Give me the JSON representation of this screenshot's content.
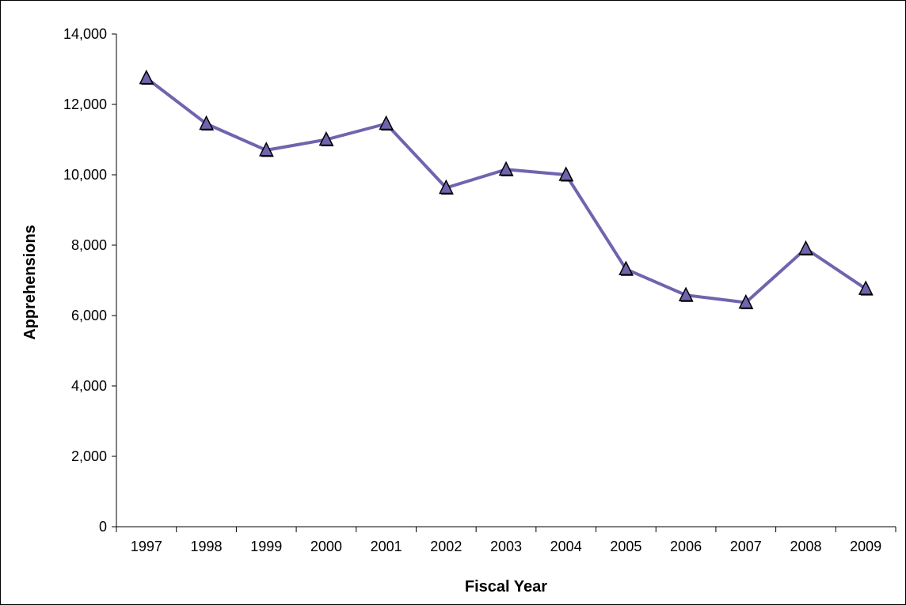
{
  "chart_data": {
    "type": "line",
    "title": "",
    "xlabel": "Fiscal Year",
    "ylabel": "Apprehensions",
    "categories": [
      "1997",
      "1998",
      "1999",
      "2000",
      "2001",
      "2002",
      "2003",
      "2004",
      "2005",
      "2006",
      "2007",
      "2008",
      "2009"
    ],
    "series": [
      {
        "values": [
          12750,
          11450,
          10700,
          11000,
          11450,
          9630,
          10150,
          10000,
          7320,
          6580,
          6370,
          7900,
          6760
        ],
        "color": "#7064AE",
        "marker": "triangle",
        "marker_fill": "#7064AE",
        "marker_outline": "#000000"
      }
    ],
    "ylim": [
      0,
      14000
    ],
    "y_ticks": [
      0,
      2000,
      4000,
      6000,
      8000,
      10000,
      12000,
      14000
    ],
    "y_tick_labels": [
      "0",
      "2,000",
      "4,000",
      "6,000",
      "8,000",
      "10,000",
      "12,000",
      "14,000"
    ],
    "grid": false,
    "legend": "none"
  }
}
